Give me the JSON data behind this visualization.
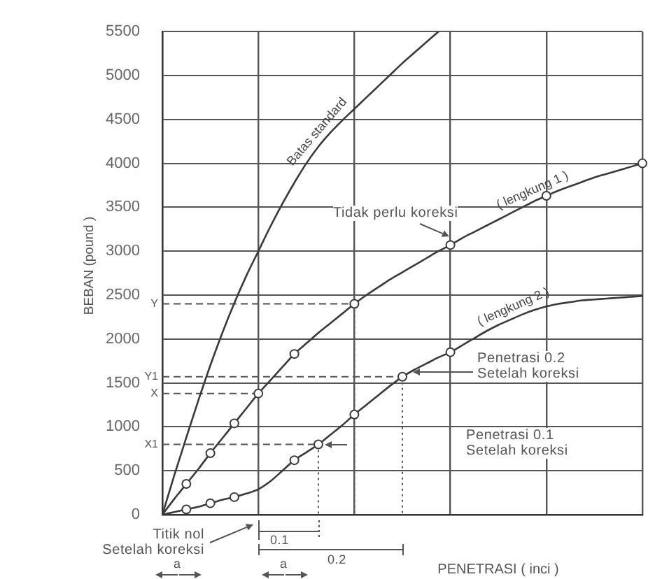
{
  "chart_data": {
    "type": "line",
    "ylabel": "BEBAN (pound )",
    "xlabel": "PENETRASI ( inci )",
    "categories": [
      null,
      null,
      null,
      null,
      null,
      null,
      null,
      null,
      null,
      null,
      null,
      null,
      null,
      null,
      null,
      null,
      null,
      null,
      null,
      null,
      null,
      null,
      null,
      null,
      null,
      null,
      null,
      null,
      null,
      null,
      null,
      null,
      null,
      null,
      null,
      null,
      null,
      null,
      null,
      null,
      null
    ],
    "ylim": [
      0,
      5500
    ],
    "yticks": [
      0,
      500,
      1000,
      1500,
      2000,
      2500,
      3000,
      3500,
      4000,
      4500,
      5000,
      5500
    ],
    "grid": true,
    "series": [
      {
        "name": "Batas standard",
        "color": "#3a3a3a",
        "values": [
          0,
          450,
          880,
          1300,
          1700,
          2070,
          2410,
          2720,
          3000,
          3280,
          3540,
          3780,
          4000,
          4190,
          4350,
          4490,
          4620,
          4750,
          4880,
          5010,
          5140,
          5260,
          5380,
          5500,
          null,
          null,
          null,
          null,
          null,
          null,
          null,
          null,
          null,
          null,
          null,
          null,
          null,
          null,
          null,
          null,
          null
        ]
      },
      {
        "name": "( lengkung 1 )",
        "color": "#3a3a3a",
        "values": [
          0,
          180,
          350,
          520,
          700,
          870,
          1040,
          1210,
          1380,
          1530,
          1680,
          1830,
          1950,
          2070,
          2180,
          2290,
          2400,
          2500,
          2590,
          2680,
          2760,
          2840,
          2920,
          3000,
          3070,
          3150,
          3220,
          3290,
          3360,
          3430,
          3500,
          3570,
          3630,
          3690,
          3740,
          3790,
          3840,
          3880,
          3920,
          3960,
          4000
        ]
      },
      {
        "name": "( lengkung 2 )",
        "color": "#3a3a3a",
        "values": [
          0,
          30,
          60,
          90,
          130,
          170,
          200,
          240,
          290,
          380,
          500,
          620,
          710,
          800,
          910,
          1020,
          1140,
          1250,
          1360,
          1470,
          1570,
          1650,
          1720,
          1790,
          1850,
          1930,
          2010,
          2090,
          2160,
          2220,
          2280,
          2330,
          2370,
          2400,
          2420,
          2440,
          2450,
          2460,
          2470,
          2480,
          2490
        ]
      },
      {
        "type": "scatter",
        "marker": "circle",
        "color": "#3a3a3a",
        "values": [
          null,
          null,
          350,
          null,
          700,
          null,
          1040,
          null,
          1380,
          null,
          null,
          1830,
          null,
          null,
          null,
          null,
          2400,
          null,
          null,
          null,
          null,
          null,
          null,
          null,
          3070,
          null,
          null,
          null,
          null,
          null,
          null,
          null,
          3630,
          null,
          null,
          null,
          null,
          null,
          null,
          null,
          4000
        ]
      },
      {
        "type": "scatter",
        "marker": "circle",
        "color": "#3a3a3a",
        "values": [
          null,
          null,
          60,
          null,
          130,
          null,
          200,
          null,
          null,
          null,
          null,
          620,
          null,
          800,
          null,
          null,
          1140,
          null,
          null,
          null,
          1570,
          null,
          null,
          null,
          1850,
          null,
          null,
          null,
          null,
          null,
          null,
          null,
          null,
          null,
          null,
          null,
          null,
          null,
          null,
          null,
          null
        ]
      }
    ],
    "ref_lines": [
      {
        "axis": "y",
        "value": 2400,
        "label": "Y",
        "line_style": "dashed",
        "color": "#555555"
      },
      {
        "axis": "y",
        "value": 1570,
        "label": "Y1",
        "line_style": "dashed",
        "color": "#555555"
      },
      {
        "axis": "y",
        "value": 1380,
        "label": "X",
        "line_style": "dashed",
        "color": "#555555"
      },
      {
        "axis": "y",
        "value": 800,
        "label": "X1",
        "line_style": "dashed",
        "color": "#555555"
      }
    ],
    "annotations": [
      "Tidak perlu koreksi",
      "Penetrasi 0.2 Setelah koreksi",
      "Penetrasi 0.1 Setelah koreksi",
      "Titik nol Setelah koreksi",
      "0.1",
      "0.2",
      "a",
      "a"
    ]
  }
}
